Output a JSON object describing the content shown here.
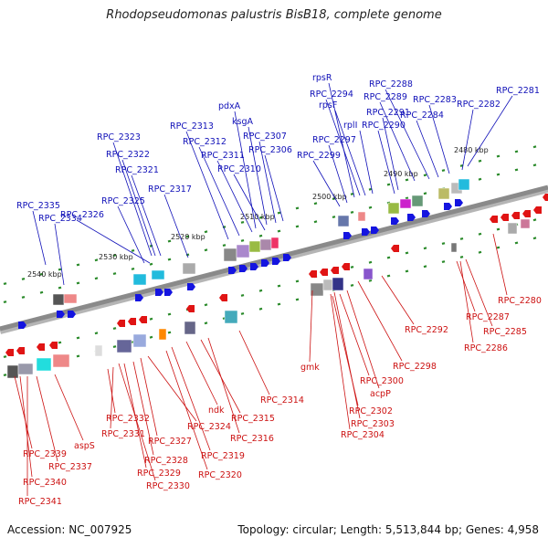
{
  "title": "Rhodopseudomonas palustris BisB18, complete genome",
  "footer": {
    "accession": "Accession: NC_007925",
    "topology": "Topology: circular; Length: 5,513,844 bp; Genes: 4,958"
  },
  "colors": {
    "upper_label": "#1010b8",
    "lower_label": "#cc1111",
    "plus_strand_arrow": "#1414e0",
    "minus_strand_arrow": "#e01414",
    "backbone": "#8a8a8a",
    "tick": "#2a8a2a"
  },
  "scale_labels": [
    "2540 kbp",
    "2530 kbp",
    "2520 kbp",
    "2510 kbp",
    "2500 kbp",
    "2490 kbp",
    "2480 kbp"
  ],
  "upper_genes": [
    "RPC_2335",
    "RPC_2334",
    "RPC_2326",
    "RPC_2325",
    "RPC_2323",
    "RPC_2322",
    "RPC_2321",
    "RPC_2317",
    "RPC_2313",
    "RPC_2312",
    "RPC_2311",
    "RPC_2310",
    "pdxA",
    "ksgA",
    "RPC_2307",
    "RPC_2306",
    "rpsR",
    "RPC_2294",
    "rpsF",
    "RPC_2297",
    "RPC_2299",
    "rplI",
    "RPC_2291",
    "RPC_2290",
    "RPC_2288",
    "RPC_2289",
    "RPC_2284",
    "RPC_2283",
    "RPC_2282",
    "RPC_2281"
  ],
  "lower_genes": [
    "RPC_2339",
    "RPC_2340",
    "RPC_2341",
    "RPC_2337",
    "aspS",
    "RPC_2332",
    "RPC_2331",
    "RPC_2329",
    "RPC_2330",
    "RPC_2328",
    "RPC_2327",
    "RPC_2324",
    "ndk",
    "RPC_2320",
    "RPC_2319",
    "RPC_2315",
    "RPC_2316",
    "RPC_2314",
    "gmk",
    "RPC_2300",
    "acpP",
    "RPC_2302",
    "RPC_2303",
    "RPC_2304",
    "RPC_2298",
    "RPC_2292",
    "RPC_2287",
    "RPC_2285",
    "RPC_2286",
    "RPC_2280"
  ]
}
